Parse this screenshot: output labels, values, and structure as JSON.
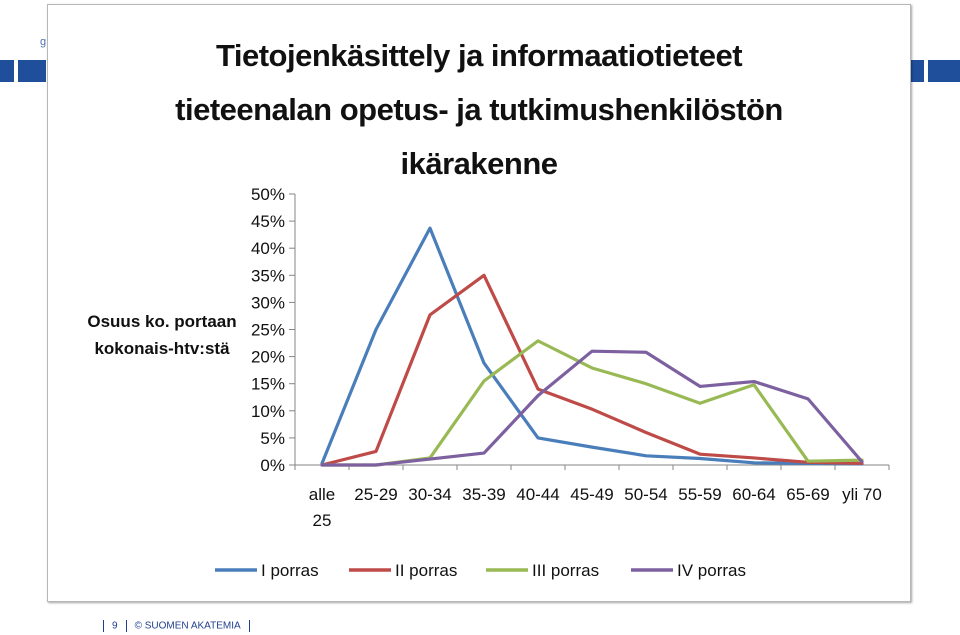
{
  "slide": {
    "corner_mark": "g",
    "page_number": "9",
    "copyright": "© SUOMEN AKATEMIA"
  },
  "chart_data": {
    "type": "line",
    "title": "Tietojenkäsittely ja informaatiotieteet tieteenalan opetus- ja tutkimushenkilöstön ikärakenne",
    "title_lines": [
      "Tietojenkäsittely ja informaatiotieteet",
      "tieteenalan opetus- ja tutkimushenkilöstön",
      "ikärakenne"
    ],
    "ylabel_lines": [
      "Osuus ko. portaan",
      "kokonais-htv:stä"
    ],
    "xlabel": "",
    "categories": [
      "alle 25",
      "25-29",
      "30-34",
      "35-39",
      "40-44",
      "45-49",
      "50-54",
      "55-59",
      "60-64",
      "65-69",
      "yli 70"
    ],
    "y_ticks": [
      "0%",
      "5%",
      "10%",
      "15%",
      "20%",
      "25%",
      "30%",
      "35%",
      "40%",
      "45%",
      "50%"
    ],
    "ylim": [
      0,
      50
    ],
    "grid": false,
    "legend_position": "bottom",
    "series": [
      {
        "name": "I porras",
        "color": "#4a7ebb",
        "values": [
          0.3,
          25.0,
          43.7,
          18.8,
          5.0,
          3.3,
          1.7,
          1.2,
          0.4,
          0.3,
          0.2
        ]
      },
      {
        "name": "II porras",
        "color": "#be4b48",
        "values": [
          0,
          2.5,
          27.7,
          35.0,
          14.0,
          10.3,
          6.0,
          2.0,
          1.3,
          0.5,
          0.3
        ]
      },
      {
        "name": "III porras",
        "color": "#98b954",
        "values": [
          0,
          0,
          1.3,
          15.5,
          22.9,
          17.9,
          15.0,
          11.4,
          14.8,
          0.7,
          0.9
        ]
      },
      {
        "name": "IV porras",
        "color": "#7d60a0",
        "values": [
          0,
          0,
          1.1,
          2.2,
          12.8,
          21.0,
          20.8,
          14.5,
          15.4,
          12.2,
          0.6
        ]
      }
    ]
  }
}
